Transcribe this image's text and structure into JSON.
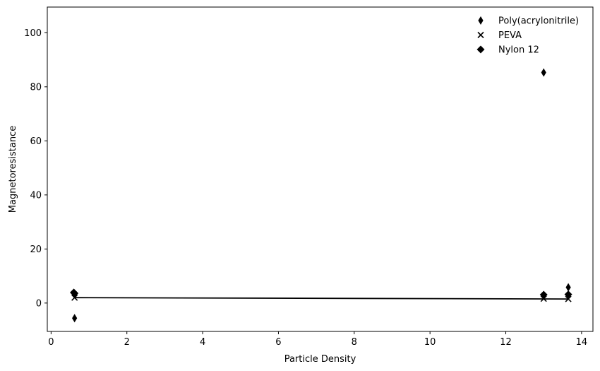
{
  "chart_data": {
    "type": "scatter",
    "title": "",
    "xlabel": "Particle Density",
    "ylabel": "Magnetoresistance",
    "xlim": [
      -0.1,
      14.3
    ],
    "ylim": [
      -10.5,
      109.5
    ],
    "xticks": [
      0,
      2,
      4,
      6,
      8,
      10,
      12,
      14
    ],
    "yticks": [
      0,
      20,
      40,
      60,
      80,
      100
    ],
    "grid": false,
    "legend_position": "top-right",
    "series": [
      {
        "name": "Poly(acrylonitrile)",
        "marker": "thin-diamond",
        "color": "#000000",
        "points": [
          {
            "x": 0.62,
            "y": -5.6
          },
          {
            "x": 13.0,
            "y": 85.3
          },
          {
            "x": 13.65,
            "y": 5.8
          }
        ]
      },
      {
        "name": "PEVA",
        "marker": "x",
        "color": "#000000",
        "points": [
          {
            "x": 0.62,
            "y": 2.0
          },
          {
            "x": 13.0,
            "y": 1.6
          },
          {
            "x": 13.65,
            "y": 1.5
          }
        ]
      },
      {
        "name": "Nylon 12",
        "marker": "diamond",
        "color": "#000000",
        "points": [
          {
            "x": 0.6,
            "y": 3.9
          },
          {
            "x": 0.62,
            "y": 3.6
          },
          {
            "x": 13.0,
            "y": 3.1
          },
          {
            "x": 13.65,
            "y": 3.2
          }
        ]
      }
    ],
    "fit_line": {
      "color": "#000000",
      "points": [
        {
          "x": 0.62,
          "y": 2.0
        },
        {
          "x": 13.65,
          "y": 1.5
        }
      ]
    }
  }
}
